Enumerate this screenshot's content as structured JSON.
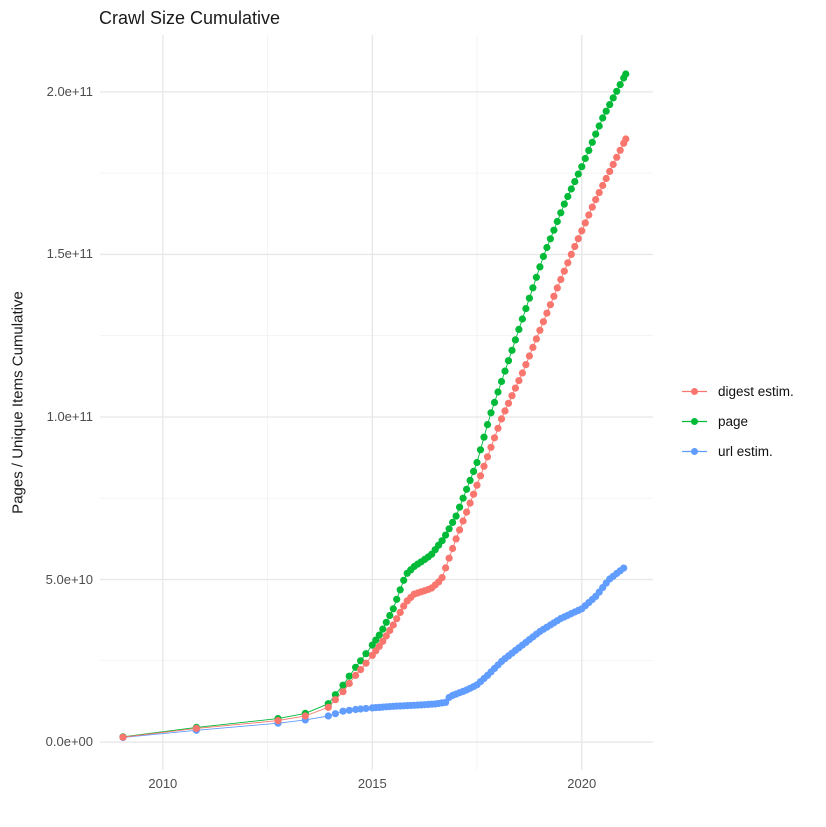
{
  "chart": {
    "title": "Crawl Size Cumulative",
    "y_axis_title": "Pages / Unique Items Cumulative"
  },
  "chart_data": {
    "type": "scatter",
    "title": "Crawl Size Cumulative",
    "xlabel": "",
    "ylabel": "Pages / Unique Items Cumulative",
    "legend_position": "right",
    "grid": true,
    "background": "#FFFFFF",
    "grid_color_major": "#E7E7E7",
    "grid_color_minor": "#F1F1F1",
    "tick_text_color": "#4d4d4d",
    "y_unit": 10000000000,
    "point_radius": 3.6,
    "line_width": 0.9,
    "axes": {
      "x": {
        "domain": [
          2008.5,
          2021.7
        ],
        "range": [
          100,
          653
        ],
        "ticks": [
          {
            "v": 2010,
            "label": "2010"
          },
          {
            "v": 2015,
            "label": "2015"
          },
          {
            "v": 2020,
            "label": "2020"
          }
        ],
        "minor": [
          2012.5,
          2017.5
        ]
      },
      "y": {
        "domain": [
          -0.86,
          21.75
        ],
        "range": [
          770,
          35
        ],
        "ticks": [
          {
            "v": 0,
            "label": "0.0e+00"
          },
          {
            "v": 5,
            "label": "5.0e+10"
          },
          {
            "v": 10,
            "label": "1.0e+11"
          },
          {
            "v": 15,
            "label": "1.5e+11"
          },
          {
            "v": 20,
            "label": "2.0e+11"
          }
        ],
        "minor": [
          2.5,
          7.5,
          12.5,
          17.5
        ]
      }
    },
    "dot_sampling": {
      "early_x": [
        2009.05,
        2010.8,
        2012.75,
        2013.4,
        2013.95,
        2014.12,
        2014.3,
        2014.45,
        2014.6,
        2014.72,
        2014.85
      ],
      "monthly_from": 2015.0,
      "monthly_to": 2021.0,
      "step": 0.0833333,
      "extra_x": [
        2021.05
      ]
    },
    "series": [
      {
        "name": "digest estim.",
        "color": "#F8766D",
        "z": 3,
        "anchors": [
          [
            2009.05,
            0.15
          ],
          [
            2010.8,
            0.42
          ],
          [
            2012.75,
            0.66
          ],
          [
            2013.4,
            0.8
          ],
          [
            2013.95,
            1.07
          ],
          [
            2014.3,
            1.55
          ],
          [
            2014.6,
            2.05
          ],
          [
            2014.9,
            2.5
          ],
          [
            2015.2,
            3.0
          ],
          [
            2015.5,
            3.6
          ],
          [
            2015.8,
            4.3
          ],
          [
            2016.0,
            4.55
          ],
          [
            2016.4,
            4.72
          ],
          [
            2016.65,
            5.0
          ],
          [
            2017.0,
            6.25
          ],
          [
            2017.5,
            7.9
          ],
          [
            2018.1,
            10.0
          ],
          [
            2018.6,
            11.4
          ],
          [
            2019.2,
            13.3
          ],
          [
            2019.75,
            15.0
          ],
          [
            2020.3,
            16.6
          ],
          [
            2021.05,
            18.55
          ]
        ]
      },
      {
        "name": "page",
        "color": "#00BA38",
        "z": 2,
        "anchors": [
          [
            2009.05,
            0.16
          ],
          [
            2010.8,
            0.45
          ],
          [
            2012.75,
            0.72
          ],
          [
            2013.4,
            0.88
          ],
          [
            2013.95,
            1.18
          ],
          [
            2014.3,
            1.75
          ],
          [
            2014.6,
            2.3
          ],
          [
            2014.9,
            2.8
          ],
          [
            2015.2,
            3.35
          ],
          [
            2015.5,
            4.1
          ],
          [
            2015.8,
            5.15
          ],
          [
            2016.0,
            5.4
          ],
          [
            2016.4,
            5.75
          ],
          [
            2016.7,
            6.25
          ],
          [
            2017.0,
            6.95
          ],
          [
            2017.5,
            8.6
          ],
          [
            2017.8,
            10.0
          ],
          [
            2018.45,
            12.5
          ],
          [
            2019.1,
            15.0
          ],
          [
            2019.6,
            16.6
          ],
          [
            2020.0,
            17.7
          ],
          [
            2020.5,
            19.2
          ],
          [
            2021.05,
            20.55
          ]
        ]
      },
      {
        "name": "url estim.",
        "color": "#619CFF",
        "z": 1,
        "anchors": [
          [
            2009.05,
            0.14
          ],
          [
            2010.8,
            0.36
          ],
          [
            2012.75,
            0.58
          ],
          [
            2013.4,
            0.68
          ],
          [
            2013.95,
            0.8
          ],
          [
            2014.3,
            0.95
          ],
          [
            2014.6,
            1.0
          ],
          [
            2015.0,
            1.05
          ],
          [
            2015.5,
            1.1
          ],
          [
            2016.0,
            1.13
          ],
          [
            2016.5,
            1.17
          ],
          [
            2016.75,
            1.22
          ],
          [
            2016.85,
            1.4
          ],
          [
            2017.25,
            1.6
          ],
          [
            2017.5,
            1.76
          ],
          [
            2017.75,
            2.05
          ],
          [
            2018.1,
            2.5
          ],
          [
            2018.55,
            2.95
          ],
          [
            2019.0,
            3.4
          ],
          [
            2019.5,
            3.8
          ],
          [
            2020.0,
            4.1
          ],
          [
            2020.35,
            4.5
          ],
          [
            2020.65,
            5.0
          ],
          [
            2021.0,
            5.35
          ]
        ]
      }
    ]
  }
}
